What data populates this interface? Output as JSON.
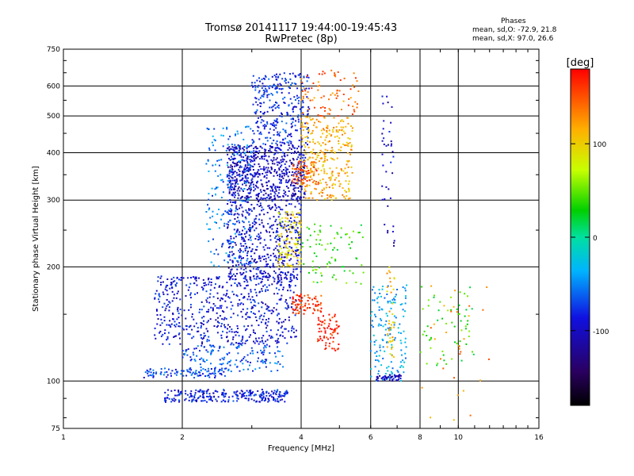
{
  "header": {
    "title_line1": "Tromsø 20141117 19:44:00-19:45:43",
    "title_line2": "RwPretec (8p)"
  },
  "stats": {
    "heading": "Phases",
    "line_o": "mean, sd,O: -72.9, 21.8",
    "line_x": "mean, sd,X:  97.0, 26.6"
  },
  "colorbar": {
    "label": "[deg]",
    "ticks": [
      "100",
      "0",
      "-100"
    ]
  },
  "colors": {
    "grid": "#000000",
    "background": "#ffffff"
  },
  "chart_data": {
    "type": "scatter",
    "xlabel": "Frequency [MHz]",
    "ylabel": "Stationary phase Virtual Height [km]",
    "x_scale": "log",
    "y_scale": "log",
    "xlim": [
      1,
      16
    ],
    "ylim": [
      75,
      750
    ],
    "x_ticks": [
      1,
      2,
      4,
      6,
      8,
      10,
      16
    ],
    "y_ticks": [
      75,
      100,
      200,
      300,
      400,
      500,
      600,
      750
    ],
    "colorbar_range": [
      -180,
      180
    ],
    "colorbar_ticks": [
      100,
      0,
      -100
    ],
    "grid": true,
    "clusters": [
      {
        "x": [
          1.8,
          3.7
        ],
        "y": [
          88,
          95
        ],
        "phase": -85,
        "count": 260
      },
      {
        "x": [
          1.6,
          2.6
        ],
        "y": [
          102,
          108
        ],
        "phase": -70,
        "count": 90
      },
      {
        "x": [
          2.0,
          3.6
        ],
        "y": [
          106,
          125
        ],
        "phase": -65,
        "count": 160
      },
      {
        "x": [
          1.7,
          3.9
        ],
        "y": [
          125,
          190
        ],
        "phase": -90,
        "count": 600
      },
      {
        "x": [
          2.6,
          4.0
        ],
        "y": [
          185,
          300
        ],
        "phase": -95,
        "count": 500
      },
      {
        "x": [
          2.6,
          4.1
        ],
        "y": [
          300,
          420
        ],
        "phase": -100,
        "count": 650
      },
      {
        "x": [
          3.0,
          4.2
        ],
        "y": [
          420,
          650
        ],
        "phase": -80,
        "count": 300
      },
      {
        "x": [
          2.3,
          3.0
        ],
        "y": [
          200,
          470
        ],
        "phase": -55,
        "count": 200
      },
      {
        "x": [
          3.5,
          4.0
        ],
        "y": [
          200,
          280
        ],
        "phase": 95,
        "count": 120
      },
      {
        "x": [
          3.8,
          4.5
        ],
        "y": [
          150,
          170
        ],
        "phase": 160,
        "count": 80
      },
      {
        "x": [
          4.4,
          5.0
        ],
        "y": [
          120,
          150
        ],
        "phase": 170,
        "count": 70
      },
      {
        "x": [
          4.0,
          5.4
        ],
        "y": [
          300,
          500
        ],
        "phase": 115,
        "count": 300
      },
      {
        "x": [
          3.8,
          4.5
        ],
        "y": [
          330,
          380
        ],
        "phase": 150,
        "count": 70
      },
      {
        "x": [
          4.0,
          5.6
        ],
        "y": [
          500,
          660
        ],
        "phase": 140,
        "count": 80
      },
      {
        "x": [
          4.0,
          5.8
        ],
        "y": [
          180,
          260
        ],
        "phase": 40,
        "count": 80
      },
      {
        "x": [
          6.0,
          7.4
        ],
        "y": [
          100,
          180
        ],
        "phase": -40,
        "count": 150
      },
      {
        "x": [
          6.2,
          7.2
        ],
        "y": [
          100,
          104
        ],
        "phase": -100,
        "count": 50
      },
      {
        "x": [
          6.6,
          6.9
        ],
        "y": [
          115,
          200
        ],
        "phase": 110,
        "count": 40
      },
      {
        "x": [
          8.0,
          11.0
        ],
        "y": [
          110,
          180
        ],
        "phase": 40,
        "count": 60
      },
      {
        "x": [
          6.4,
          6.9
        ],
        "y": [
          220,
          600
        ],
        "phase": -100,
        "count": 40
      },
      {
        "x": [
          8.0,
          12.0
        ],
        "y": [
          78,
          180
        ],
        "phase": 130,
        "count": 30
      }
    ]
  }
}
